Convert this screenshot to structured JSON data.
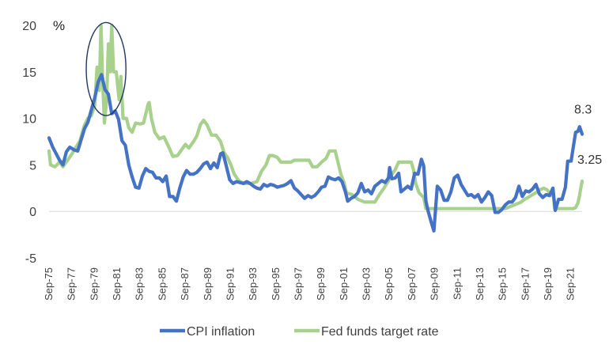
{
  "chart_data": {
    "type": "line",
    "title": "",
    "xlabel": "",
    "ylabel": "",
    "unit_label": "%",
    "ylim": [
      -5,
      20
    ],
    "y_ticks": [
      -5,
      0,
      5,
      10,
      15,
      20
    ],
    "x_range": [
      1975.67,
      2022.67
    ],
    "x_tick_labels": [
      "Sep-75",
      "Sep-77",
      "Sep-79",
      "Sep-81",
      "Sep-83",
      "Sep-85",
      "Sep-87",
      "Sep-89",
      "Sep-91",
      "Sep-93",
      "Sep-95",
      "Sep-97",
      "Sep-99",
      "Sep-01",
      "Sep-03",
      "Sep-05",
      "Sep-07",
      "Sep-09",
      "Sep-11",
      "Sep-13",
      "Sep-15",
      "Sep-17",
      "Sep-19",
      "Sep-21"
    ],
    "x_tick_years": [
      1975.67,
      1977.67,
      1979.67,
      1981.67,
      1983.67,
      1985.67,
      1987.67,
      1989.67,
      1991.67,
      1993.67,
      1995.67,
      1997.67,
      1999.67,
      2001.67,
      2003.67,
      2005.67,
      2007.67,
      2009.67,
      2011.67,
      2013.67,
      2015.67,
      2017.67,
      2019.67,
      2021.67
    ],
    "grid": false,
    "legend_position": "bottom",
    "annotations": [
      {
        "type": "ellipse",
        "cx": 1980.7,
        "cy": 15.3,
        "rx": 1.75,
        "ry": 5.0,
        "color": "#1f3864"
      }
    ],
    "series": [
      {
        "name": "CPI inflation",
        "color": "#4472c4",
        "end_label": "8.3",
        "points": [
          [
            1975.67,
            7.9
          ],
          [
            1976.0,
            6.9
          ],
          [
            1976.3,
            6.2
          ],
          [
            1976.6,
            5.5
          ],
          [
            1976.9,
            5.0
          ],
          [
            1977.2,
            6.4
          ],
          [
            1977.5,
            6.9
          ],
          [
            1977.9,
            6.6
          ],
          [
            1978.2,
            6.5
          ],
          [
            1978.5,
            7.7
          ],
          [
            1978.8,
            8.9
          ],
          [
            1979.1,
            9.6
          ],
          [
            1979.4,
            10.9
          ],
          [
            1979.7,
            12.2
          ],
          [
            1980.0,
            13.9
          ],
          [
            1980.3,
            14.7
          ],
          [
            1980.6,
            13.1
          ],
          [
            1980.9,
            12.6
          ],
          [
            1981.2,
            10.5
          ],
          [
            1981.5,
            10.8
          ],
          [
            1981.8,
            9.9
          ],
          [
            1982.1,
            7.6
          ],
          [
            1982.4,
            7.1
          ],
          [
            1982.7,
            5.0
          ],
          [
            1983.0,
            3.7
          ],
          [
            1983.3,
            2.6
          ],
          [
            1983.6,
            2.5
          ],
          [
            1983.9,
            3.8
          ],
          [
            1984.2,
            4.6
          ],
          [
            1984.5,
            4.3
          ],
          [
            1984.8,
            4.2
          ],
          [
            1985.1,
            3.6
          ],
          [
            1985.4,
            3.6
          ],
          [
            1985.7,
            3.2
          ],
          [
            1986.0,
            3.8
          ],
          [
            1986.3,
            1.6
          ],
          [
            1986.6,
            1.6
          ],
          [
            1986.9,
            1.1
          ],
          [
            1987.2,
            2.5
          ],
          [
            1987.5,
            3.7
          ],
          [
            1987.8,
            4.4
          ],
          [
            1988.1,
            4.0
          ],
          [
            1988.4,
            4.0
          ],
          [
            1988.7,
            4.2
          ],
          [
            1989.0,
            4.6
          ],
          [
            1989.3,
            5.1
          ],
          [
            1989.6,
            5.3
          ],
          [
            1989.9,
            4.6
          ],
          [
            1990.2,
            5.2
          ],
          [
            1990.5,
            4.7
          ],
          [
            1990.8,
            6.2
          ],
          [
            1991.0,
            6.3
          ],
          [
            1991.3,
            4.9
          ],
          [
            1991.6,
            3.4
          ],
          [
            1991.9,
            3.0
          ],
          [
            1992.2,
            3.2
          ],
          [
            1992.5,
            3.1
          ],
          [
            1992.8,
            3.0
          ],
          [
            1993.1,
            3.2
          ],
          [
            1993.4,
            3.0
          ],
          [
            1993.7,
            2.7
          ],
          [
            1994.0,
            2.5
          ],
          [
            1994.3,
            2.4
          ],
          [
            1994.6,
            2.9
          ],
          [
            1994.9,
            2.7
          ],
          [
            1995.2,
            2.9
          ],
          [
            1995.5,
            2.8
          ],
          [
            1995.8,
            2.6
          ],
          [
            1996.1,
            2.7
          ],
          [
            1996.4,
            2.8
          ],
          [
            1996.7,
            3.0
          ],
          [
            1997.0,
            3.3
          ],
          [
            1997.3,
            2.5
          ],
          [
            1997.6,
            2.2
          ],
          [
            1997.9,
            1.8
          ],
          [
            1998.2,
            1.4
          ],
          [
            1998.5,
            1.7
          ],
          [
            1998.8,
            1.5
          ],
          [
            1999.1,
            1.7
          ],
          [
            1999.4,
            2.1
          ],
          [
            1999.7,
            2.6
          ],
          [
            2000.0,
            2.7
          ],
          [
            2000.3,
            3.7
          ],
          [
            2000.6,
            3.5
          ],
          [
            2000.9,
            3.4
          ],
          [
            2001.2,
            3.6
          ],
          [
            2001.5,
            3.2
          ],
          [
            2001.8,
            2.1
          ],
          [
            2002.0,
            1.1
          ],
          [
            2002.3,
            1.4
          ],
          [
            2002.6,
            1.6
          ],
          [
            2002.9,
            2.0
          ],
          [
            2003.2,
            3.0
          ],
          [
            2003.5,
            2.1
          ],
          [
            2003.8,
            2.3
          ],
          [
            2004.1,
            1.9
          ],
          [
            2004.4,
            2.7
          ],
          [
            2004.7,
            3.0
          ],
          [
            2005.0,
            3.3
          ],
          [
            2005.3,
            3.1
          ],
          [
            2005.6,
            3.6
          ],
          [
            2005.7,
            4.7
          ],
          [
            2005.9,
            3.5
          ],
          [
            2006.2,
            3.6
          ],
          [
            2006.5,
            4.1
          ],
          [
            2006.7,
            2.1
          ],
          [
            2007.0,
            2.4
          ],
          [
            2007.3,
            2.7
          ],
          [
            2007.6,
            2.4
          ],
          [
            2007.9,
            4.1
          ],
          [
            2008.2,
            4.0
          ],
          [
            2008.5,
            5.6
          ],
          [
            2008.7,
            4.9
          ],
          [
            2008.9,
            1.1
          ],
          [
            2009.1,
            0.0
          ],
          [
            2009.4,
            -1.3
          ],
          [
            2009.6,
            -2.1
          ],
          [
            2009.9,
            2.7
          ],
          [
            2010.2,
            2.3
          ],
          [
            2010.5,
            1.2
          ],
          [
            2010.8,
            1.2
          ],
          [
            2011.1,
            2.1
          ],
          [
            2011.4,
            3.6
          ],
          [
            2011.7,
            3.9
          ],
          [
            2012.0,
            2.9
          ],
          [
            2012.3,
            2.3
          ],
          [
            2012.6,
            1.7
          ],
          [
            2012.9,
            1.8
          ],
          [
            2013.2,
            1.5
          ],
          [
            2013.5,
            1.8
          ],
          [
            2013.8,
            1.0
          ],
          [
            2014.1,
            1.5
          ],
          [
            2014.4,
            2.1
          ],
          [
            2014.7,
            1.7
          ],
          [
            2015.0,
            -0.1
          ],
          [
            2015.3,
            -0.1
          ],
          [
            2015.6,
            0.2
          ],
          [
            2015.9,
            0.7
          ],
          [
            2016.2,
            1.0
          ],
          [
            2016.5,
            1.0
          ],
          [
            2016.8,
            1.5
          ],
          [
            2017.1,
            2.7
          ],
          [
            2017.4,
            1.6
          ],
          [
            2017.7,
            2.2
          ],
          [
            2018.0,
            2.1
          ],
          [
            2018.3,
            2.4
          ],
          [
            2018.6,
            2.9
          ],
          [
            2018.9,
            1.9
          ],
          [
            2019.2,
            1.5
          ],
          [
            2019.5,
            1.8
          ],
          [
            2019.8,
            1.7
          ],
          [
            2020.1,
            2.5
          ],
          [
            2020.3,
            0.1
          ],
          [
            2020.6,
            1.3
          ],
          [
            2020.9,
            1.3
          ],
          [
            2021.2,
            2.6
          ],
          [
            2021.4,
            5.4
          ],
          [
            2021.7,
            5.4
          ],
          [
            2021.9,
            7.0
          ],
          [
            2022.1,
            8.5
          ],
          [
            2022.3,
            8.6
          ],
          [
            2022.45,
            9.1
          ],
          [
            2022.67,
            8.3
          ]
        ]
      },
      {
        "name": "Fed funds target rate",
        "color": "#a9d18e",
        "end_label": "3.25",
        "points": [
          [
            1975.67,
            6.5
          ],
          [
            1975.8,
            5.0
          ],
          [
            1976.2,
            4.8
          ],
          [
            1976.6,
            5.3
          ],
          [
            1976.9,
            4.8
          ],
          [
            1977.3,
            5.5
          ],
          [
            1977.7,
            6.2
          ],
          [
            1978.0,
            6.8
          ],
          [
            1978.4,
            7.6
          ],
          [
            1978.8,
            9.3
          ],
          [
            1979.1,
            10.0
          ],
          [
            1979.4,
            10.3
          ],
          [
            1979.7,
            11.4
          ],
          [
            1979.9,
            15.5
          ],
          [
            1980.1,
            13.0
          ],
          [
            1980.25,
            20.0
          ],
          [
            1980.4,
            14.0
          ],
          [
            1980.55,
            9.5
          ],
          [
            1980.75,
            12.0
          ],
          [
            1980.9,
            18.0
          ],
          [
            1981.05,
            15.0
          ],
          [
            1981.2,
            20.0
          ],
          [
            1981.35,
            15.0
          ],
          [
            1981.6,
            15.0
          ],
          [
            1981.85,
            12.0
          ],
          [
            1982.0,
            14.5
          ],
          [
            1982.2,
            10.0
          ],
          [
            1982.5,
            10.0
          ],
          [
            1982.7,
            9.0
          ],
          [
            1983.0,
            8.5
          ],
          [
            1983.3,
            9.5
          ],
          [
            1983.7,
            9.4
          ],
          [
            1984.0,
            9.5
          ],
          [
            1984.4,
            11.5
          ],
          [
            1984.5,
            11.7
          ],
          [
            1984.7,
            10.0
          ],
          [
            1985.0,
            8.5
          ],
          [
            1985.4,
            7.8
          ],
          [
            1985.8,
            8.0
          ],
          [
            1986.2,
            7.0
          ],
          [
            1986.6,
            5.9
          ],
          [
            1987.0,
            6.0
          ],
          [
            1987.4,
            6.7
          ],
          [
            1987.7,
            7.2
          ],
          [
            1988.0,
            6.8
          ],
          [
            1988.4,
            7.5
          ],
          [
            1988.7,
            8.1
          ],
          [
            1989.0,
            9.3
          ],
          [
            1989.3,
            9.8
          ],
          [
            1989.6,
            9.3
          ],
          [
            1990.0,
            8.2
          ],
          [
            1990.4,
            8.2
          ],
          [
            1990.8,
            7.5
          ],
          [
            1991.1,
            6.3
          ],
          [
            1991.4,
            5.8
          ],
          [
            1991.7,
            5.0
          ],
          [
            1992.0,
            4.0
          ],
          [
            1992.4,
            3.3
          ],
          [
            1992.8,
            3.0
          ],
          [
            1993.5,
            3.0
          ],
          [
            1994.0,
            3.2
          ],
          [
            1994.4,
            4.3
          ],
          [
            1994.8,
            5.0
          ],
          [
            1995.1,
            6.0
          ],
          [
            1995.4,
            6.0
          ],
          [
            1995.8,
            5.8
          ],
          [
            1996.1,
            5.3
          ],
          [
            1996.5,
            5.3
          ],
          [
            1997.0,
            5.3
          ],
          [
            1997.3,
            5.5
          ],
          [
            1998.0,
            5.5
          ],
          [
            1998.6,
            5.5
          ],
          [
            1998.9,
            4.8
          ],
          [
            1999.3,
            4.8
          ],
          [
            1999.7,
            5.3
          ],
          [
            2000.1,
            5.7
          ],
          [
            2000.4,
            6.5
          ],
          [
            2000.9,
            6.5
          ],
          [
            2001.1,
            5.5
          ],
          [
            2001.4,
            4.0
          ],
          [
            2001.7,
            3.0
          ],
          [
            2001.9,
            2.0
          ],
          [
            2002.4,
            1.8
          ],
          [
            2002.9,
            1.3
          ],
          [
            2003.5,
            1.0
          ],
          [
            2004.4,
            1.0
          ],
          [
            2004.8,
            1.8
          ],
          [
            2005.2,
            2.5
          ],
          [
            2005.6,
            3.3
          ],
          [
            2005.9,
            4.0
          ],
          [
            2006.2,
            4.5
          ],
          [
            2006.5,
            5.3
          ],
          [
            2007.6,
            5.3
          ],
          [
            2007.8,
            4.5
          ],
          [
            2008.0,
            3.0
          ],
          [
            2008.3,
            2.0
          ],
          [
            2008.7,
            1.5
          ],
          [
            2008.9,
            0.3
          ],
          [
            2015.9,
            0.3
          ],
          [
            2016.3,
            0.5
          ],
          [
            2016.9,
            0.8
          ],
          [
            2017.3,
            1.0
          ],
          [
            2017.6,
            1.3
          ],
          [
            2017.9,
            1.5
          ],
          [
            2018.3,
            1.8
          ],
          [
            2018.6,
            2.0
          ],
          [
            2018.9,
            2.3
          ],
          [
            2019.3,
            2.5
          ],
          [
            2019.6,
            2.3
          ],
          [
            2019.9,
            1.8
          ],
          [
            2020.15,
            1.6
          ],
          [
            2020.25,
            0.3
          ],
          [
            2021.9,
            0.3
          ],
          [
            2022.1,
            0.4
          ],
          [
            2022.3,
            0.9
          ],
          [
            2022.45,
            1.7
          ],
          [
            2022.55,
            2.5
          ],
          [
            2022.67,
            3.25
          ]
        ]
      }
    ]
  }
}
